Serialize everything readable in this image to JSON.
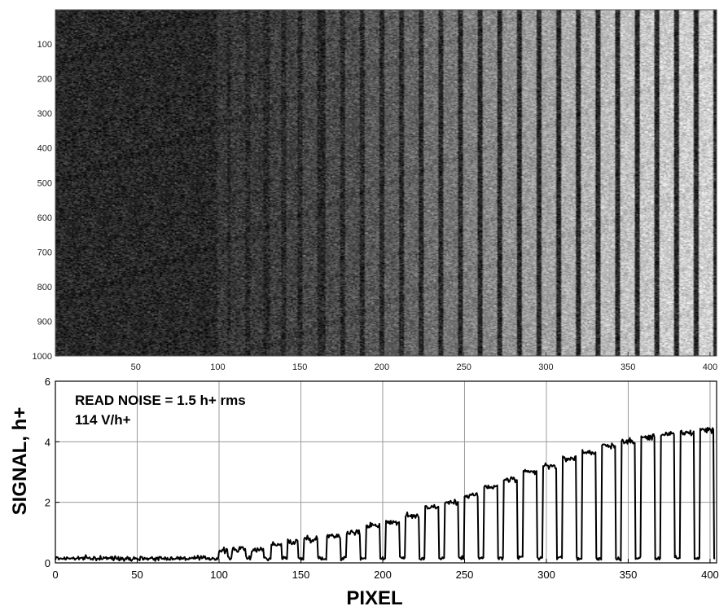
{
  "chart_data": [
    {
      "type": "heatmap",
      "title": "",
      "xlabel": "",
      "ylabel": "",
      "xlim": [
        1,
        404
      ],
      "ylim": [
        1,
        1000
      ],
      "y_reversed": true,
      "x_ticks": [
        50,
        100,
        150,
        200,
        250,
        300,
        350,
        400
      ],
      "y_ticks": [
        100,
        200,
        300,
        400,
        500,
        600,
        700,
        800,
        900,
        1000
      ],
      "colormap": "gray",
      "grid": false
    },
    {
      "type": "line",
      "title": "",
      "xlabel": "PIXEL",
      "ylabel": "SIGNAL, h+",
      "xlim": [
        0,
        404
      ],
      "ylim": [
        0,
        6
      ],
      "x_ticks": [
        0,
        50,
        100,
        150,
        200,
        250,
        300,
        350,
        400
      ],
      "y_ticks": [
        0,
        2,
        4,
        6
      ],
      "grid": true,
      "annotations": [
        "READ NOISE =  1.5 h+ rms",
        "114 V/h+"
      ],
      "baseline_noise_level": 0.15,
      "series": [
        {
          "name": "",
          "bars": [
            {
              "start": 100,
              "end": 105,
              "value": 0.4
            },
            {
              "start": 108,
              "end": 116,
              "value": 0.45
            },
            {
              "start": 120,
              "end": 127,
              "value": 0.45
            },
            {
              "start": 132,
              "end": 138,
              "value": 0.6
            },
            {
              "start": 142,
              "end": 148,
              "value": 0.7
            },
            {
              "start": 152,
              "end": 160,
              "value": 0.8
            },
            {
              "start": 166,
              "end": 174,
              "value": 0.9
            },
            {
              "start": 178,
              "end": 186,
              "value": 1.0
            },
            {
              "start": 190,
              "end": 198,
              "value": 1.25
            },
            {
              "start": 202,
              "end": 210,
              "value": 1.35
            },
            {
              "start": 214,
              "end": 222,
              "value": 1.55
            },
            {
              "start": 226,
              "end": 234,
              "value": 1.85
            },
            {
              "start": 238,
              "end": 246,
              "value": 2.0
            },
            {
              "start": 250,
              "end": 258,
              "value": 2.25
            },
            {
              "start": 262,
              "end": 270,
              "value": 2.5
            },
            {
              "start": 274,
              "end": 282,
              "value": 2.75
            },
            {
              "start": 286,
              "end": 294,
              "value": 3.0
            },
            {
              "start": 298,
              "end": 306,
              "value": 3.2
            },
            {
              "start": 310,
              "end": 318,
              "value": 3.45
            },
            {
              "start": 322,
              "end": 330,
              "value": 3.65
            },
            {
              "start": 334,
              "end": 342,
              "value": 3.85
            },
            {
              "start": 346,
              "end": 354,
              "value": 4.0
            },
            {
              "start": 358,
              "end": 366,
              "value": 4.15
            },
            {
              "start": 370,
              "end": 378,
              "value": 4.25
            },
            {
              "start": 382,
              "end": 390,
              "value": 4.3
            },
            {
              "start": 394,
              "end": 402,
              "value": 4.4
            }
          ]
        }
      ]
    }
  ]
}
